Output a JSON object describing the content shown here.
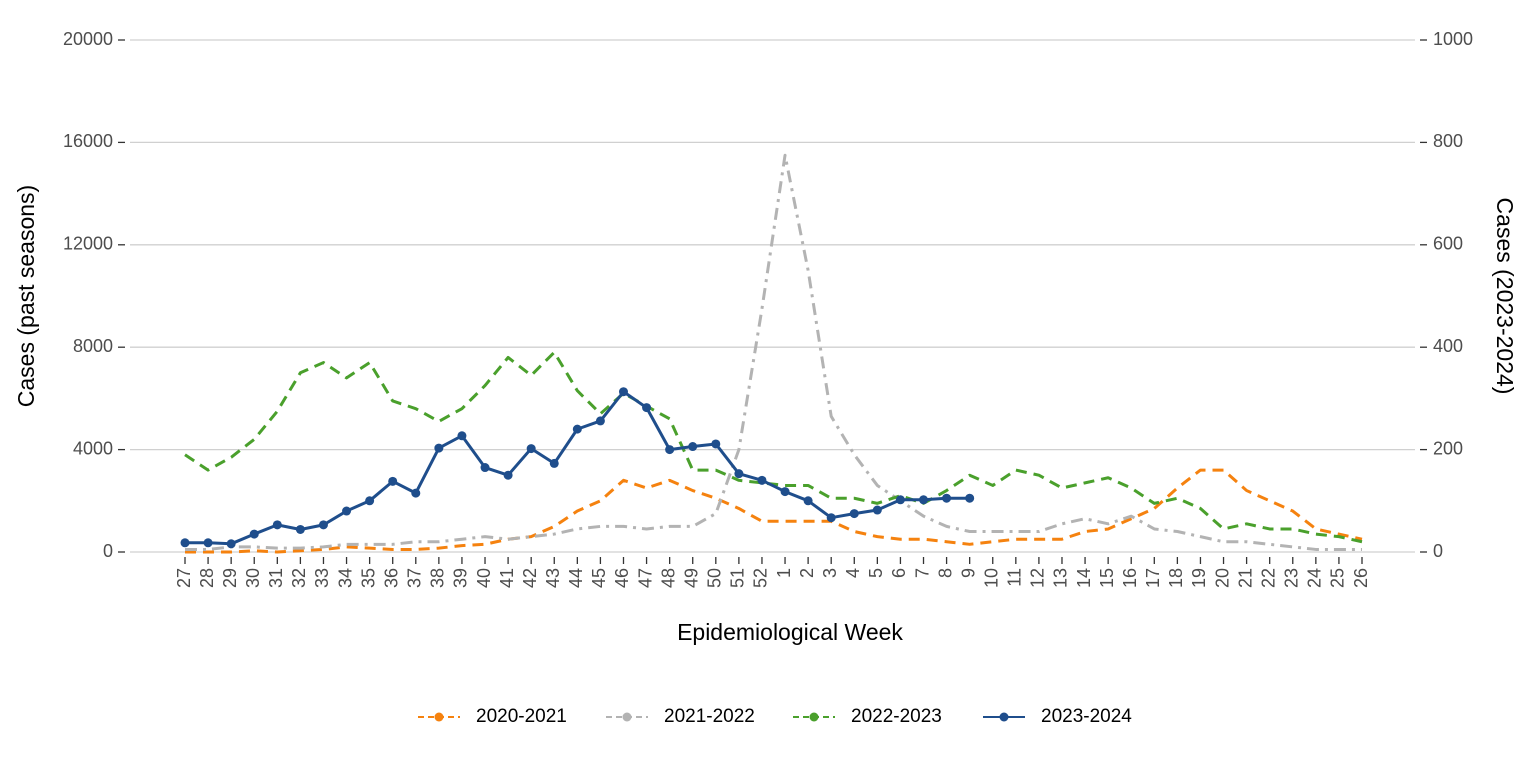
{
  "chart_data": {
    "type": "line",
    "xlabel": "Epidemiological Week",
    "ylabel": "Cases (past seasons)",
    "y2label": "Cases (2023-2024)",
    "categories": [
      "27",
      "28",
      "29",
      "30",
      "31",
      "32",
      "33",
      "34",
      "35",
      "36",
      "37",
      "38",
      "39",
      "40",
      "41",
      "42",
      "43",
      "44",
      "45",
      "46",
      "47",
      "48",
      "49",
      "50",
      "51",
      "52",
      "1",
      "2",
      "3",
      "4",
      "5",
      "6",
      "7",
      "8",
      "9",
      "10",
      "11",
      "12",
      "13",
      "14",
      "15",
      "16",
      "17",
      "18",
      "19",
      "20",
      "21",
      "22",
      "23",
      "24",
      "25",
      "26"
    ],
    "ylim": [
      0,
      20000
    ],
    "yticks": [
      0,
      4000,
      8000,
      12000,
      16000,
      20000
    ],
    "y2lim": [
      0,
      1000
    ],
    "y2ticks": [
      0,
      200,
      400,
      600,
      800,
      1000
    ],
    "grid": true,
    "legend": "bottom",
    "series": [
      {
        "name": "2020-2021",
        "color": "#f5820f",
        "line_style": "dashed",
        "markers": false,
        "values": [
          0,
          0,
          0,
          50,
          0,
          50,
          100,
          200,
          150,
          100,
          100,
          150,
          250,
          300,
          500,
          600,
          1000,
          1600,
          2000,
          2800,
          2500,
          2800,
          2400,
          2100,
          1700,
          1200,
          1200,
          1200,
          1200,
          800,
          600,
          500,
          500,
          400,
          300,
          400,
          500,
          500,
          500,
          800,
          900,
          1300,
          1700,
          2500,
          3200,
          3200,
          2400,
          2000,
          1600,
          900,
          700,
          500
        ]
      },
      {
        "name": "2021-2022",
        "color": "#b3b3b3",
        "line_style": "dashdot",
        "markers": false,
        "values": [
          100,
          100,
          200,
          200,
          150,
          150,
          200,
          300,
          300,
          300,
          400,
          400,
          500,
          600,
          500,
          600,
          700,
          900,
          1000,
          1000,
          900,
          1000,
          1000,
          1500,
          4000,
          9500,
          15500,
          11000,
          5300,
          3800,
          2600,
          2000,
          1400,
          1000,
          800,
          800,
          800,
          800,
          1100,
          1300,
          1100,
          1400,
          900,
          800,
          600,
          400,
          400,
          300,
          200,
          100,
          100,
          100
        ]
      },
      {
        "name": "2022-2023",
        "color": "#4aa02c",
        "line_style": "dashed",
        "markers": false,
        "values": [
          3800,
          3200,
          3700,
          4400,
          5500,
          7000,
          7400,
          6800,
          7400,
          5900,
          5600,
          5100,
          5600,
          6500,
          7600,
          6900,
          7800,
          6300,
          5400,
          6200,
          5700,
          5200,
          3200,
          3200,
          2800,
          2700,
          2600,
          2600,
          2100,
          2100,
          1900,
          2200,
          1900,
          2400,
          3000,
          2600,
          3200,
          3000,
          2500,
          2700,
          2900,
          2500,
          1900,
          2100,
          1700,
          900,
          1100,
          900,
          900,
          700,
          600,
          400
        ]
      },
      {
        "name": "2023-2024",
        "color": "#1f4e8c",
        "line_style": "solid",
        "markers": true,
        "axis": "y2",
        "values": [
          18,
          18,
          16,
          35,
          53,
          44,
          53,
          80,
          100,
          138,
          115,
          203,
          227,
          165,
          150,
          202,
          173,
          240,
          256,
          313,
          282,
          200,
          206,
          211,
          153,
          140,
          118,
          100,
          67,
          75,
          82,
          102,
          102,
          105,
          105,
          null,
          null,
          null,
          null,
          null,
          null,
          null,
          null,
          null,
          null,
          null,
          null,
          null,
          null,
          null,
          null,
          null
        ]
      }
    ]
  }
}
